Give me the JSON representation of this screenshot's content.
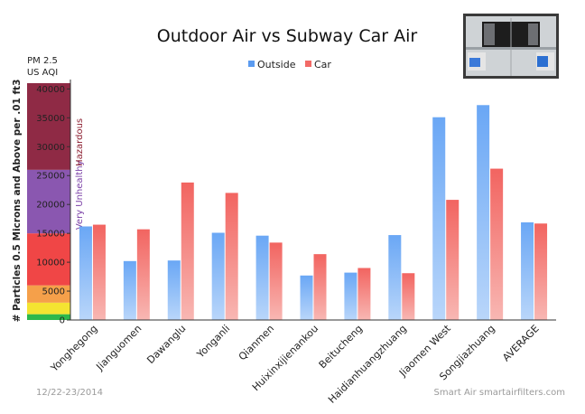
{
  "chart_data": {
    "type": "bar",
    "title": "Outdoor Air vs Subway Car Air",
    "ylabel": "# Particles 0.5 Microns and Above per .01 ft3",
    "ylim": [
      0,
      41000
    ],
    "yticks": [
      0,
      5000,
      10000,
      15000,
      20000,
      25000,
      30000,
      35000,
      40000
    ],
    "categories": [
      "Yonghegong",
      "Jianguomen",
      "Dawanglu",
      "Yonganli",
      "Qianmen",
      "Huixinxijienankou",
      "Beitucheng",
      "Haidianhuangzhuang",
      "Jiaomen West",
      "Songjiazhuang",
      "AVERAGE"
    ],
    "series": [
      {
        "name": "Outside",
        "color": "#5b9bf0",
        "values": [
          16200,
          10200,
          10300,
          15100,
          14600,
          7700,
          8200,
          14700,
          35100,
          37200,
          16900
        ]
      },
      {
        "name": "Car",
        "color": "#f26a66",
        "values": [
          16500,
          15700,
          23800,
          22000,
          13400,
          11400,
          9000,
          8100,
          20800,
          26200,
          16700
        ]
      }
    ],
    "legend_position": "top-center",
    "grid": false,
    "aqi_scale": {
      "label_line1": "PM 2.5",
      "label_line2": "US AQI",
      "bands": [
        {
          "from": 0,
          "to": 1000,
          "color": "#2db84c",
          "label": ""
        },
        {
          "from": 1000,
          "to": 3000,
          "color": "#f4e431",
          "label": ""
        },
        {
          "from": 3000,
          "to": 6000,
          "color": "#f5a04a",
          "label": ""
        },
        {
          "from": 6000,
          "to": 15000,
          "color": "#f04646",
          "label": ""
        },
        {
          "from": 15000,
          "to": 26000,
          "color": "#8a57b0",
          "label": "Very Unhealthy",
          "label_color": "#7a3fa6"
        },
        {
          "from": 26000,
          "to": 41000,
          "color": "#8f2a45",
          "label": "Hazardous",
          "label_color": "#8b1c2e"
        }
      ]
    }
  },
  "footer": {
    "date": "12/22-23/2014",
    "credit": "Smart Air smartairfilters.com"
  },
  "photo": {
    "description_icon": "subway-car-interior-photo"
  }
}
